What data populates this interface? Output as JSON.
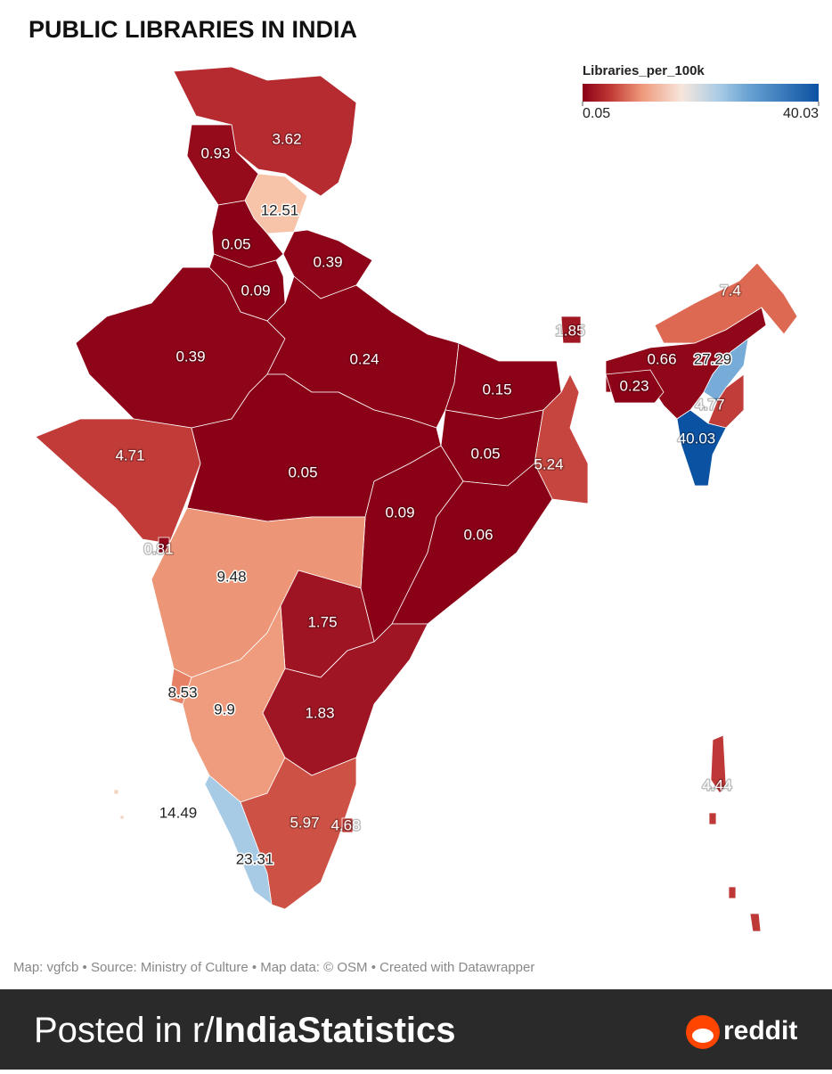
{
  "chart_data": {
    "type": "choropleth",
    "title": "PUBLIC LIBRARIES IN INDIA",
    "legend_title": "Libraries_per_100k",
    "clim": [
      0.05,
      40.03
    ],
    "values": [
      3.62,
      0.93,
      12.51,
      0.05,
      0.39,
      0.09,
      0.39,
      0.24,
      0.15,
      1.85,
      7.4,
      0.66,
      27.29,
      0.23,
      4.77,
      40.03,
      4.71,
      0.05,
      0.05,
      5.24,
      0.09,
      0.06,
      0.81,
      9.48,
      1.75,
      8.53,
      9.9,
      1.83,
      4.44,
      14.49,
      5.97,
      4.68,
      23.31
    ],
    "footer": "Map: vgfcb • Source: Ministry of Culture • Map data: © OSM  • Created with Datawrapper"
  },
  "banner": {
    "prefix": "Posted in r/",
    "subreddit": "IndiaStatistics",
    "brand": "reddit"
  }
}
